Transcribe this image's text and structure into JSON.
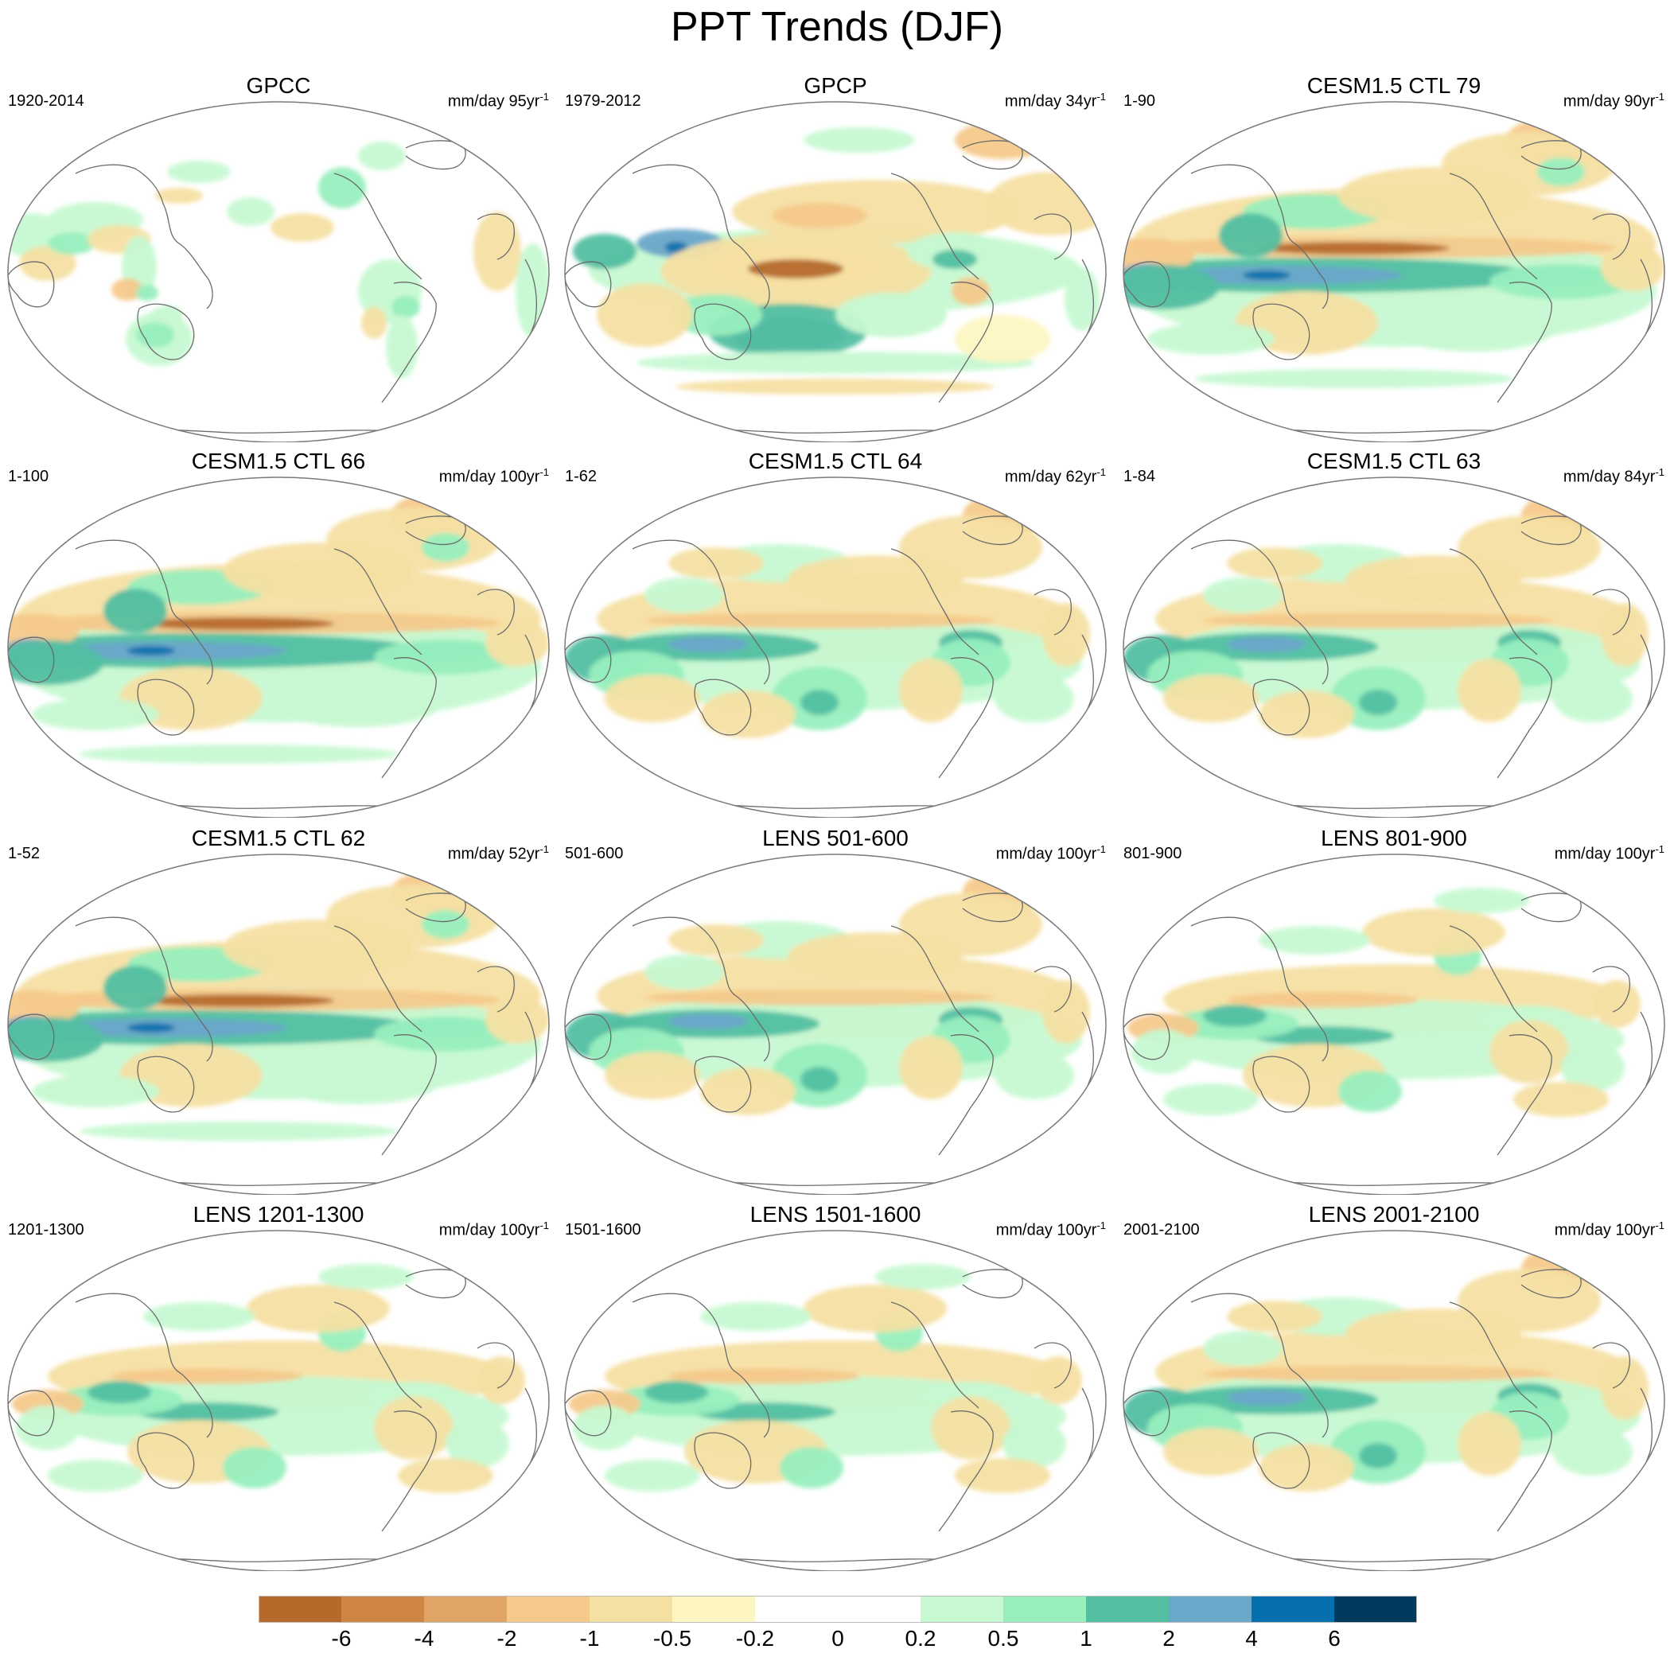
{
  "figure": {
    "title": "PPT Trends (DJF)"
  },
  "panels": [
    {
      "title": "GPCC",
      "period": "1920-2014",
      "units": "mm/day",
      "years": "95",
      "per": "yr",
      "exp": "-1",
      "scene": "obs-land"
    },
    {
      "title": "GPCP",
      "period": "1979-2012",
      "units": "mm/day",
      "years": "34",
      "per": "yr",
      "exp": "-1",
      "scene": "obs-global"
    },
    {
      "title": "CESM1.5 CTL 79",
      "period": "1-90",
      "units": "mm/day",
      "years": "90",
      "per": "yr",
      "exp": "-1",
      "scene": "model-strong"
    },
    {
      "title": "CESM1.5 CTL 66",
      "period": "1-100",
      "units": "mm/day",
      "years": "100",
      "per": "yr",
      "exp": "-1",
      "scene": "model-strong"
    },
    {
      "title": "CESM1.5 CTL 64",
      "period": "1-62",
      "units": "mm/day",
      "years": "62",
      "per": "yr",
      "exp": "-1",
      "scene": "model-mid"
    },
    {
      "title": "CESM1.5 CTL 63",
      "period": "1-84",
      "units": "mm/day",
      "years": "84",
      "per": "yr",
      "exp": "-1",
      "scene": "model-mid"
    },
    {
      "title": "CESM1.5 CTL 62",
      "period": "1-52",
      "units": "mm/day",
      "years": "52",
      "per": "yr",
      "exp": "-1",
      "scene": "model-strong"
    },
    {
      "title": "LENS 501-600",
      "period": "501-600",
      "units": "mm/day",
      "years": "100",
      "per": "yr",
      "exp": "-1",
      "scene": "model-mid"
    },
    {
      "title": "LENS 801-900",
      "period": "801-900",
      "units": "mm/day",
      "years": "100",
      "per": "yr",
      "exp": "-1",
      "scene": "model-weak"
    },
    {
      "title": "LENS 1201-1300",
      "period": "1201-1300",
      "units": "mm/day",
      "years": "100",
      "per": "yr",
      "exp": "-1",
      "scene": "model-weak"
    },
    {
      "title": "LENS 1501-1600",
      "period": "1501-1600",
      "units": "mm/day",
      "years": "100",
      "per": "yr",
      "exp": "-1",
      "scene": "model-weak"
    },
    {
      "title": "LENS 2001-2100",
      "period": "2001-2100",
      "units": "mm/day",
      "years": "100",
      "per": "yr",
      "exp": "-1",
      "scene": "model-mid"
    }
  ],
  "colorbar": {
    "colors": [
      "#b5692b",
      "#cf8644",
      "#e0a565",
      "#f5c98b",
      "#f5e0a3",
      "#fdf6c2",
      "#ffffff",
      "#ffffff",
      "#c6f9d2",
      "#98efbe",
      "#52bfa2",
      "#6aa7c9",
      "#0670ae",
      "#003b5e"
    ],
    "labels": [
      "-6",
      "-4",
      "-2",
      "-1",
      "-0.5",
      "-0.2",
      "0",
      "0.2",
      "0.5",
      "1",
      "2",
      "4",
      "6"
    ]
  }
}
